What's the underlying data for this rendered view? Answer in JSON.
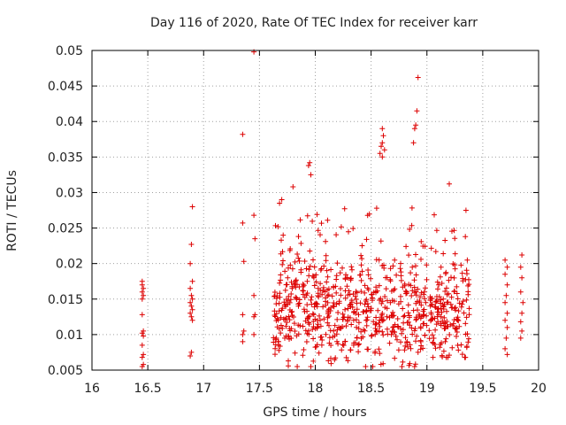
{
  "chart_data": {
    "type": "scatter",
    "title": "Day 116 of 2020, Rate Of TEC Index for receiver karr",
    "xlabel": "GPS time / hours",
    "ylabel": "ROTI / TECUs",
    "xlim": [
      16,
      20
    ],
    "ylim": [
      0.005,
      0.05
    ],
    "grid": true,
    "marker": "+",
    "marker_color": "#dd0000",
    "xticks": [
      16,
      16.5,
      17,
      17.5,
      18,
      18.5,
      19,
      19.5,
      20
    ],
    "xtick_labels": [
      "16",
      "16.5",
      "17",
      "17.5",
      "18",
      "18.5",
      "19",
      "19.5",
      "20"
    ],
    "yticks": [
      0.005,
      0.01,
      0.015,
      0.02,
      0.025,
      0.03,
      0.035,
      0.04,
      0.045,
      0.05
    ],
    "ytick_labels": [
      "0.005",
      "0.01",
      "0.015",
      "0.02",
      "0.025",
      "0.03",
      "0.035",
      "0.04",
      "0.045",
      "0.05"
    ],
    "points": [
      [
        16.45,
        0.0175
      ],
      [
        16.45,
        0.017
      ],
      [
        16.46,
        0.0165
      ],
      [
        16.45,
        0.016
      ],
      [
        16.46,
        0.0155
      ],
      [
        16.45,
        0.015
      ],
      [
        16.45,
        0.0128
      ],
      [
        16.46,
        0.0105
      ],
      [
        16.45,
        0.0102
      ],
      [
        16.46,
        0.0098
      ],
      [
        16.45,
        0.0085
      ],
      [
        16.46,
        0.0072
      ],
      [
        16.45,
        0.0068
      ],
      [
        16.46,
        0.0058
      ],
      [
        16.45,
        0.0055
      ],
      [
        16.9,
        0.028
      ],
      [
        16.89,
        0.0227
      ],
      [
        16.88,
        0.02
      ],
      [
        16.9,
        0.0175
      ],
      [
        16.88,
        0.0165
      ],
      [
        16.89,
        0.0155
      ],
      [
        16.9,
        0.015
      ],
      [
        16.88,
        0.0145
      ],
      [
        16.89,
        0.014
      ],
      [
        16.9,
        0.0135
      ],
      [
        16.88,
        0.013
      ],
      [
        16.89,
        0.0125
      ],
      [
        16.9,
        0.012
      ],
      [
        16.89,
        0.0075
      ],
      [
        16.88,
        0.007
      ],
      [
        17.35,
        0.0382
      ],
      [
        17.35,
        0.0257
      ],
      [
        17.36,
        0.0203
      ],
      [
        17.35,
        0.0128
      ],
      [
        17.36,
        0.0105
      ],
      [
        17.35,
        0.01
      ],
      [
        17.35,
        0.009
      ],
      [
        17.45,
        0.0498
      ],
      [
        17.45,
        0.0268
      ],
      [
        17.46,
        0.0235
      ],
      [
        17.45,
        0.0155
      ],
      [
        17.46,
        0.0128
      ],
      [
        17.45,
        0.0125
      ],
      [
        17.45,
        0.01
      ],
      [
        18.6,
        0.039
      ],
      [
        18.61,
        0.038
      ],
      [
        18.6,
        0.037
      ],
      [
        18.59,
        0.0365
      ],
      [
        18.58,
        0.0355
      ],
      [
        18.6,
        0.035
      ],
      [
        18.62,
        0.036
      ],
      [
        18.88,
        0.037
      ],
      [
        18.89,
        0.039
      ],
      [
        18.9,
        0.0395
      ],
      [
        18.91,
        0.0415
      ],
      [
        18.92,
        0.0462
      ],
      [
        17.95,
        0.0342
      ],
      [
        17.94,
        0.0338
      ],
      [
        17.96,
        0.0325
      ],
      [
        17.8,
        0.0308
      ],
      [
        17.7,
        0.029
      ],
      [
        17.68,
        0.0285
      ],
      [
        19.2,
        0.0312
      ],
      [
        18.55,
        0.0278
      ],
      [
        19.35,
        0.0275
      ],
      [
        19.7,
        0.0205
      ],
      [
        19.72,
        0.0195
      ],
      [
        19.7,
        0.0185
      ],
      [
        19.72,
        0.017
      ],
      [
        19.71,
        0.0155
      ],
      [
        19.7,
        0.0145
      ],
      [
        19.72,
        0.013
      ],
      [
        19.7,
        0.012
      ],
      [
        19.72,
        0.011
      ],
      [
        19.71,
        0.0095
      ],
      [
        19.7,
        0.008
      ],
      [
        19.72,
        0.0072
      ],
      [
        19.85,
        0.0212
      ],
      [
        19.84,
        0.0195
      ],
      [
        19.85,
        0.018
      ],
      [
        19.84,
        0.016
      ],
      [
        19.86,
        0.0145
      ],
      [
        19.85,
        0.013
      ],
      [
        19.84,
        0.0118
      ],
      [
        19.85,
        0.0105
      ],
      [
        19.84,
        0.0095
      ]
    ],
    "dense_clusters": [
      {
        "x_range": [
          17.62,
          19.0
        ],
        "y_range": [
          0.0055,
          0.0282
        ],
        "count": 620
      },
      {
        "x_range": [
          19.02,
          19.38
        ],
        "y_range": [
          0.0068,
          0.0275
        ],
        "count": 170
      }
    ]
  }
}
